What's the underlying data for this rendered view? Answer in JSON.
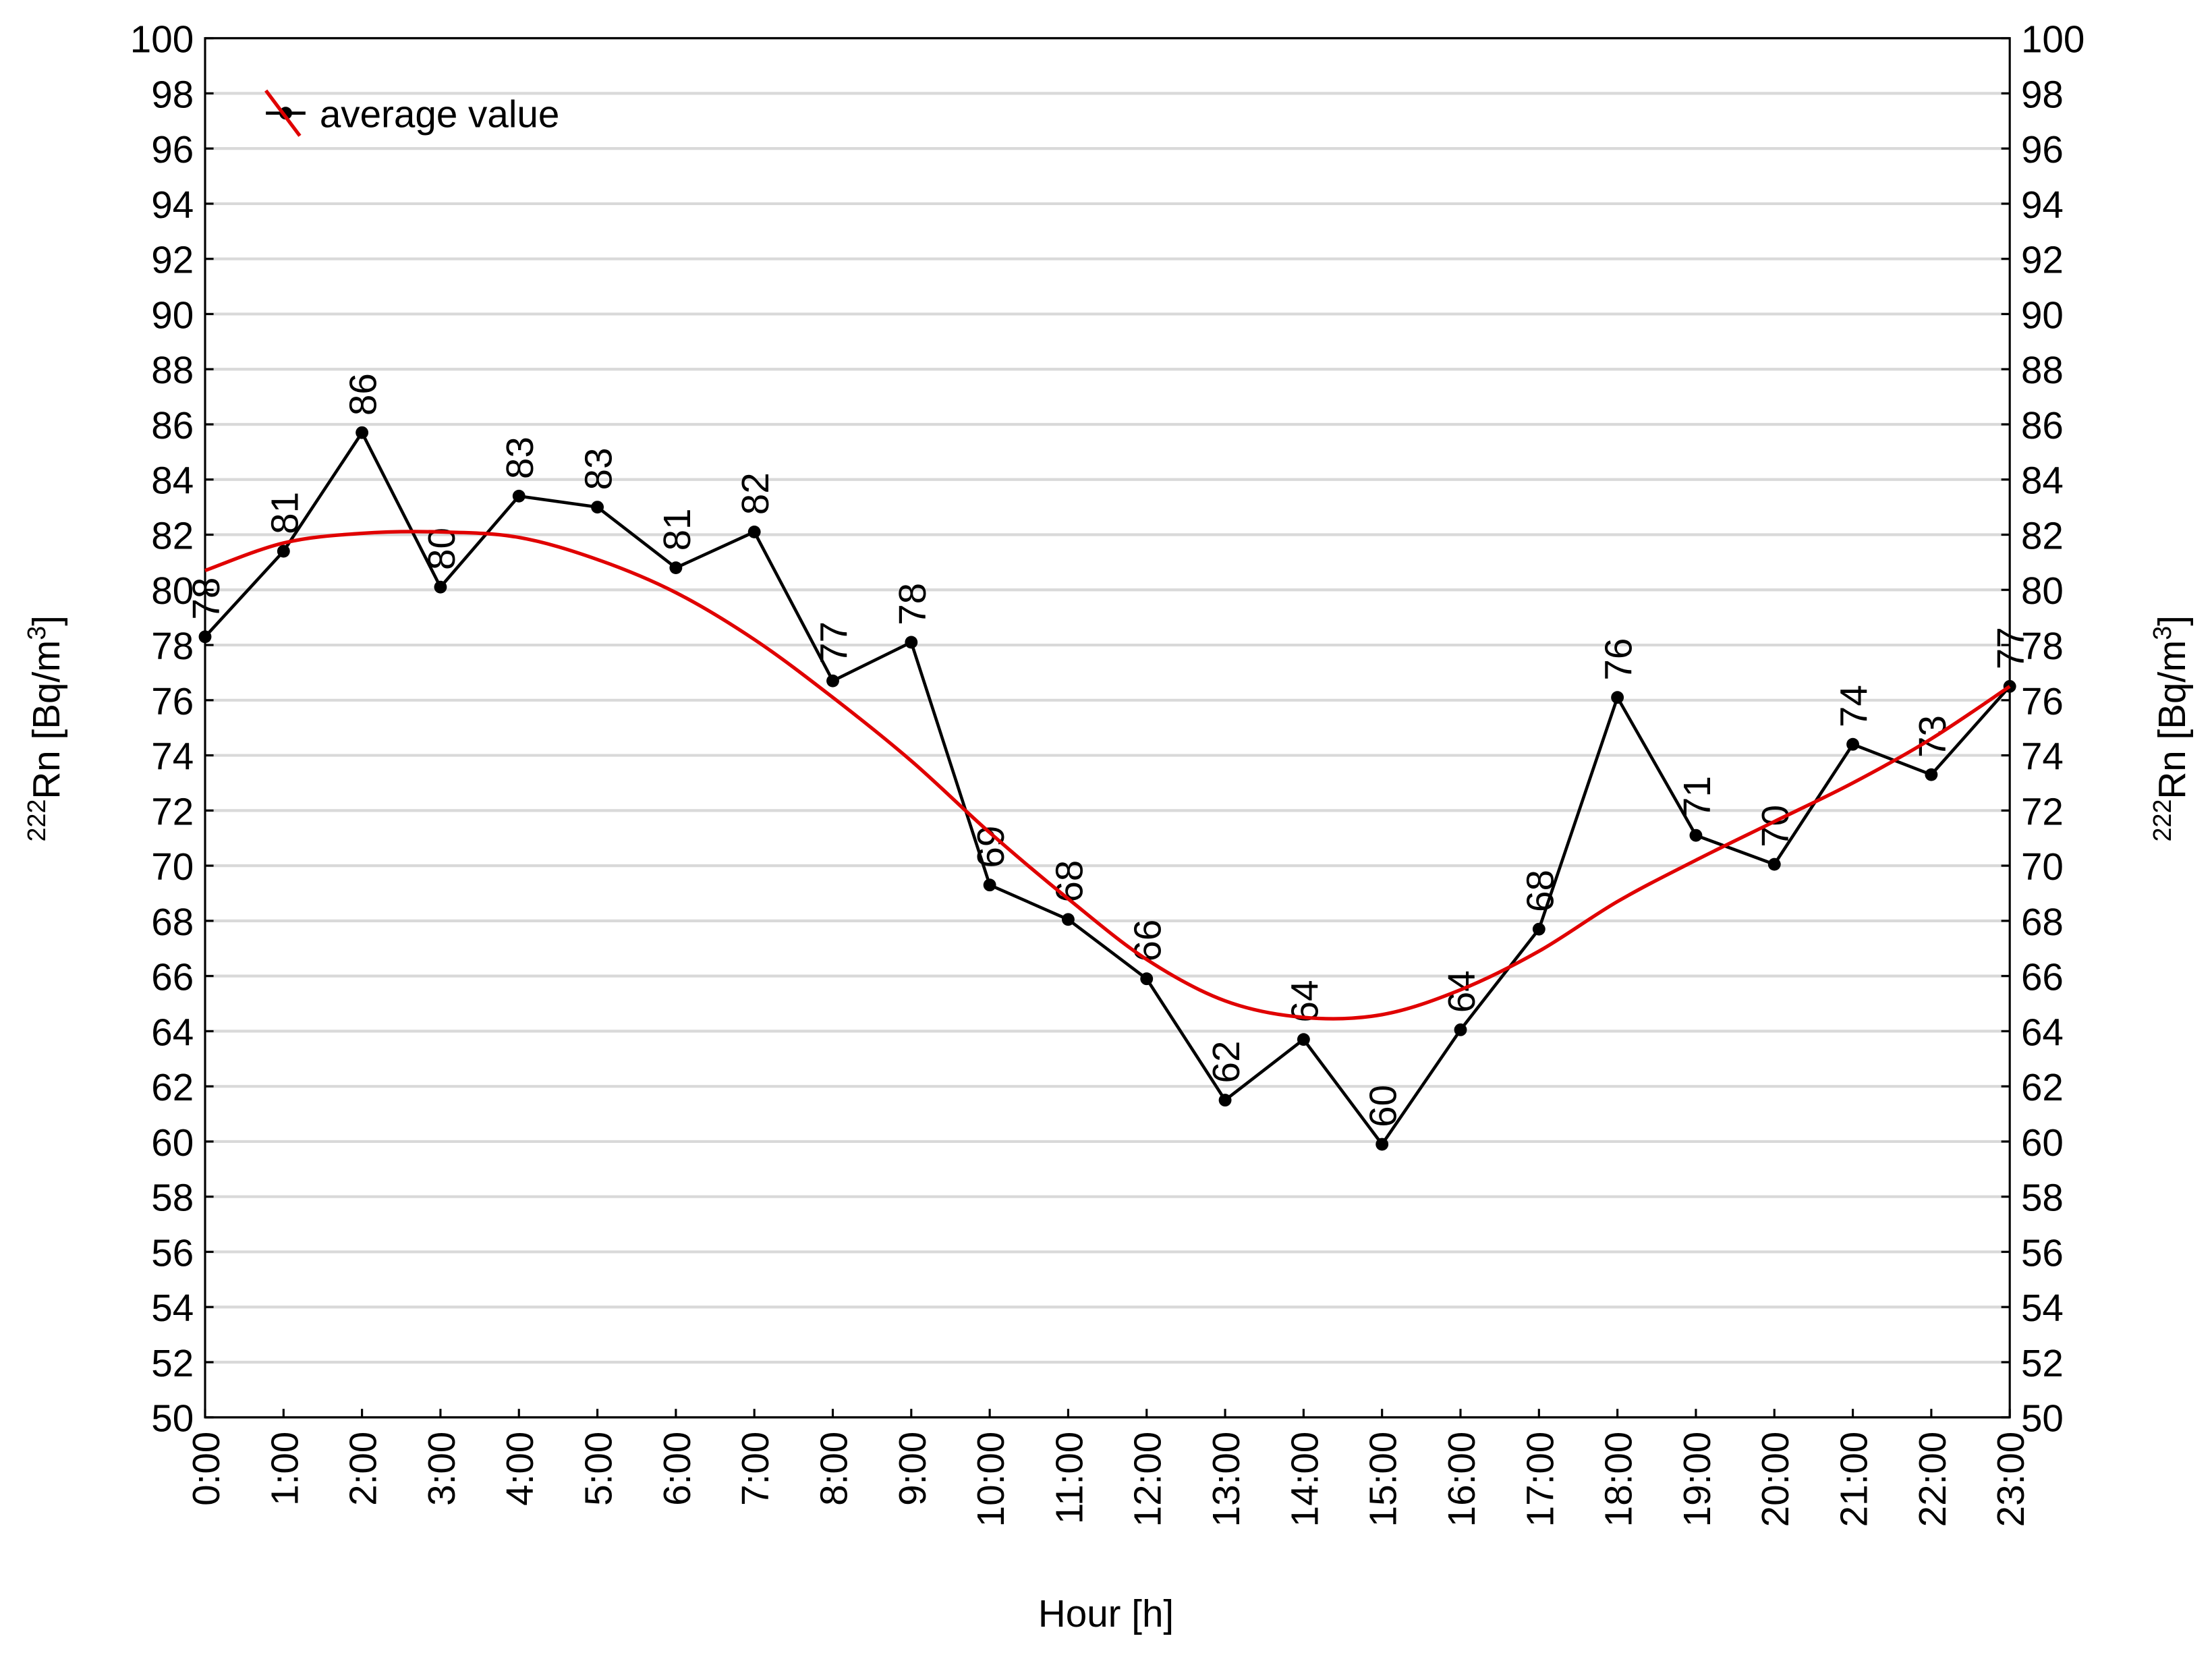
{
  "chart_data": {
    "type": "line",
    "xlabel": "Hour [h]",
    "ylabel": {
      "isotope": "222",
      "unit": "Rn [Bq/m",
      "exponent": "3",
      "close": "]"
    },
    "y2label": {
      "isotope": "222",
      "unit": "Rn [Bq/m",
      "exponent": "3",
      "close": "]"
    },
    "categories": [
      "0:00",
      "1:00",
      "2:00",
      "3:00",
      "4:00",
      "5:00",
      "6:00",
      "7:00",
      "8:00",
      "9:00",
      "10:00",
      "11:00",
      "12:00",
      "13:00",
      "14:00",
      "15:00",
      "16:00",
      "17:00",
      "18:00",
      "19:00",
      "20:00",
      "21:00",
      "22:00",
      "23:00"
    ],
    "series": [
      {
        "name": "average value",
        "color": "#000000",
        "values": [
          78.3,
          81.4,
          85.7,
          80.1,
          83.4,
          83.0,
          80.8,
          82.1,
          76.7,
          78.1,
          69.3,
          68.05,
          65.9,
          61.5,
          63.7,
          59.9,
          64.05,
          67.7,
          76.1,
          71.1,
          70.05,
          74.4,
          73.3,
          76.5
        ],
        "value_labels": [
          "78",
          "81",
          "86",
          "80",
          "83",
          "83",
          "81",
          "82",
          "77",
          "78",
          "69",
          "68",
          "66",
          "62",
          "64",
          "60",
          "64",
          "68",
          "76",
          "71",
          "70",
          "74",
          "73",
          "77"
        ]
      },
      {
        "color": "#e00000",
        "smooth": true,
        "values": [
          80.7,
          81.7,
          82.05,
          82.1,
          81.9,
          81.1,
          79.9,
          78.2,
          76.1,
          73.8,
          71.2,
          68.8,
          66.6,
          65.1,
          64.5,
          64.6,
          65.5,
          66.9,
          68.7,
          70.2,
          71.6,
          73.0,
          74.6,
          76.5
        ]
      }
    ],
    "ylim": [
      50,
      100
    ],
    "yticks": [
      50,
      52,
      54,
      56,
      58,
      60,
      62,
      64,
      66,
      68,
      70,
      72,
      74,
      76,
      78,
      80,
      82,
      84,
      86,
      88,
      90,
      92,
      94,
      96,
      98,
      100
    ],
    "y2lim": [
      50,
      100
    ],
    "y2ticks": [
      50,
      52,
      54,
      56,
      58,
      60,
      62,
      64,
      66,
      68,
      70,
      72,
      74,
      76,
      78,
      80,
      82,
      84,
      86,
      88,
      90,
      92,
      94,
      96,
      98,
      100
    ],
    "grid": true,
    "legend": "upper left"
  }
}
